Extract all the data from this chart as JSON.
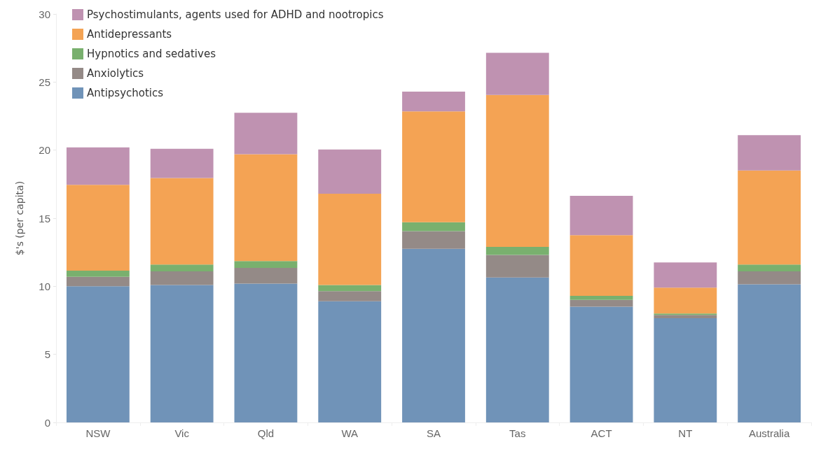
{
  "chart_data": {
    "type": "bar",
    "stacked": true,
    "ylabel": "$'s (per capita)",
    "categories": [
      "NSW",
      "Vic",
      "Qld",
      "WA",
      "SA",
      "Tas",
      "ACT",
      "NT",
      "Australia"
    ],
    "ylim": [
      0,
      30
    ],
    "yticks": [
      0,
      5,
      10,
      15,
      20,
      25,
      30
    ],
    "grid": false,
    "legend": "top left",
    "series": [
      {
        "name": "Antipsychotics",
        "color": "#7093b8",
        "values": [
          10.0,
          10.1,
          10.2,
          8.9,
          12.75,
          10.65,
          8.5,
          7.65,
          10.15
        ]
      },
      {
        "name": "Anxiolytics",
        "color": "#948a87",
        "values": [
          0.7,
          1.0,
          1.15,
          0.75,
          1.3,
          1.65,
          0.5,
          0.25,
          0.95
        ]
      },
      {
        "name": "Hypnotics and sedatives",
        "color": "#79b06e",
        "values": [
          0.45,
          0.5,
          0.5,
          0.45,
          0.65,
          0.6,
          0.3,
          0.1,
          0.5
        ]
      },
      {
        "name": "Antidepressants",
        "color": "#f4a354",
        "values": [
          6.3,
          6.35,
          7.85,
          6.7,
          8.15,
          11.15,
          4.45,
          1.9,
          6.9
        ]
      },
      {
        "name": "Psychostimulants, agents used for ADHD and nootropics",
        "color": "#bf92b1",
        "values": [
          2.75,
          2.15,
          3.05,
          3.25,
          1.45,
          3.1,
          2.9,
          1.85,
          2.6
        ]
      }
    ]
  }
}
